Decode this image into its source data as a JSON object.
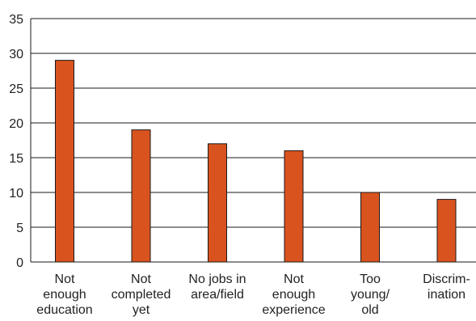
{
  "chart_data": {
    "type": "bar",
    "title": "",
    "xlabel": "",
    "ylabel": "",
    "categories": [
      [
        "Not",
        "enough",
        "education"
      ],
      [
        "Not",
        "completed",
        "yet"
      ],
      [
        "No jobs in",
        "area/field"
      ],
      [
        "Not",
        "enough",
        "experience"
      ],
      [
        "Too",
        "young/",
        "old"
      ],
      [
        "Discrim-",
        "ination"
      ]
    ],
    "values": [
      29,
      19,
      17,
      16,
      10,
      9
    ],
    "ylim": [
      0,
      35
    ],
    "yticks": [
      0,
      5,
      10,
      15,
      20,
      25,
      30,
      35
    ],
    "grid": true,
    "legend": "none",
    "colors": {
      "bar_fill": "#d9531e",
      "bar_stroke": "#1a1a1a",
      "grid": "#1a1a1a",
      "axis": "#1a1a1a"
    }
  }
}
